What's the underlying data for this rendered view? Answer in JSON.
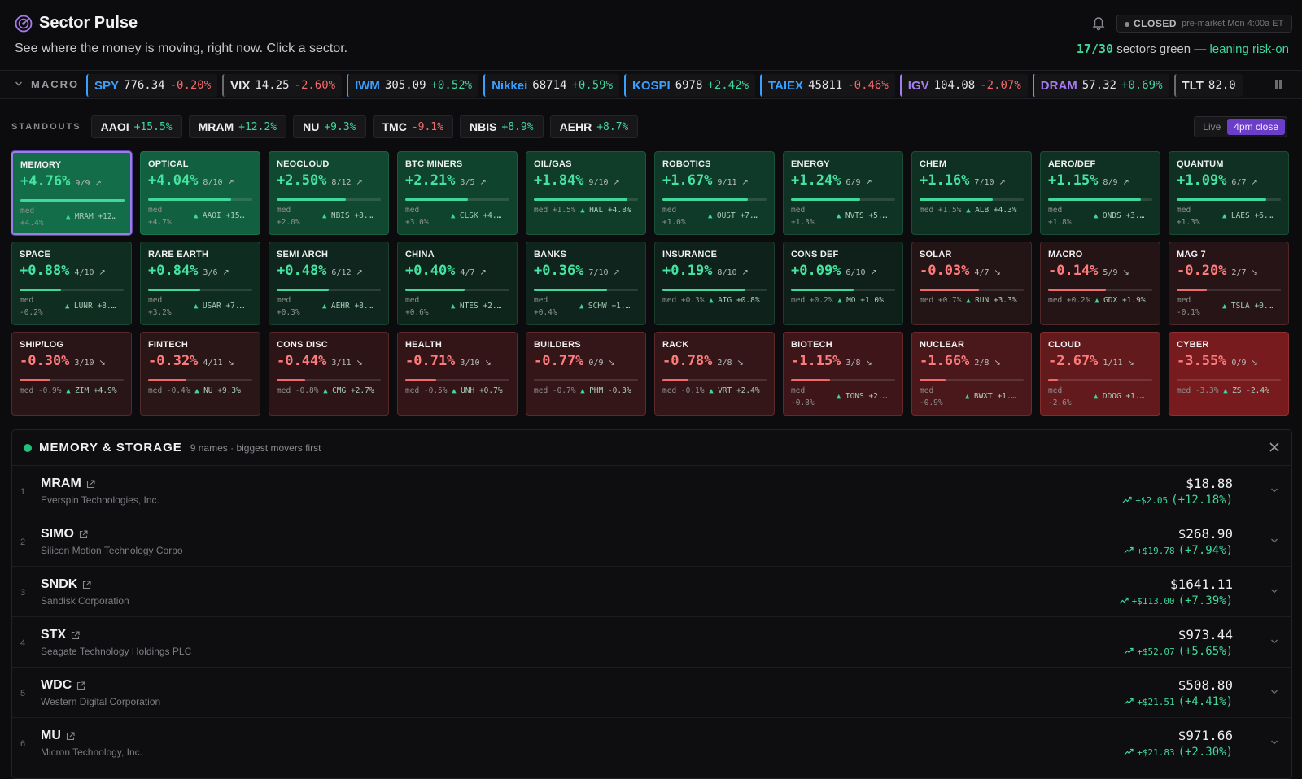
{
  "header": {
    "title": "Sector Pulse",
    "subtitle": "See where the money is moving, right now. Click a sector.",
    "status_label": "CLOSED",
    "status_time": "pre-market Mon 4:00a ET",
    "summary_count": "17/30",
    "summary_text": "sectors green —",
    "summary_lean": "leaning risk-on"
  },
  "macro": {
    "label": "MACRO",
    "items": [
      {
        "sym": "SPY",
        "price": "776.34",
        "chg": "-0.20%",
        "up": false,
        "color": "#3aa0ff"
      },
      {
        "sym": "VIX",
        "price": "14.25",
        "chg": "-2.60%",
        "up": false,
        "color": "#e6e6e8"
      },
      {
        "sym": "IWM",
        "price": "305.09",
        "chg": "+0.52%",
        "up": true,
        "color": "#3aa0ff"
      },
      {
        "sym": "Nikkei",
        "price": "68714",
        "chg": "+0.59%",
        "up": true,
        "color": "#3aa0ff"
      },
      {
        "sym": "KOSPI",
        "price": "6978",
        "chg": "+2.42%",
        "up": true,
        "color": "#3aa0ff"
      },
      {
        "sym": "TAIEX",
        "price": "45811",
        "chg": "-0.46%",
        "up": false,
        "color": "#3aa0ff"
      },
      {
        "sym": "IGV",
        "price": "104.08",
        "chg": "-2.07%",
        "up": false,
        "color": "#a57cf0"
      },
      {
        "sym": "DRAM",
        "price": "57.32",
        "chg": "+0.69%",
        "up": true,
        "color": "#a57cf0"
      },
      {
        "sym": "TLT",
        "price": "82.0",
        "chg": "",
        "up": true,
        "color": "#e6e6e8"
      }
    ]
  },
  "standouts": {
    "label": "STANDOUTS",
    "items": [
      {
        "sym": "AAOI",
        "chg": "+15.5%",
        "up": true
      },
      {
        "sym": "MRAM",
        "chg": "+12.2%",
        "up": true
      },
      {
        "sym": "NU",
        "chg": "+9.3%",
        "up": true
      },
      {
        "sym": "TMC",
        "chg": "-9.1%",
        "up": false
      },
      {
        "sym": "NBIS",
        "chg": "+8.9%",
        "up": true
      },
      {
        "sym": "AEHR",
        "chg": "+8.7%",
        "up": true
      }
    ]
  },
  "toggle": {
    "live": "Live",
    "close": "4pm close"
  },
  "colors": {
    "green": "#3fd79a",
    "red": "#f06a6a",
    "accent": "#6b3ec9"
  },
  "sectors": [
    {
      "name": "MEMORY",
      "pct": "+4.76%",
      "breadth": "9/9",
      "ratio": 1.0,
      "med": "+4.4%",
      "lead": "MRAM +12…",
      "wrap": true,
      "v": 4.76,
      "selected": true
    },
    {
      "name": "OPTICAL",
      "pct": "+4.04%",
      "breadth": "8/10",
      "ratio": 0.8,
      "med": "+4.7%",
      "lead": "AAOI +15…",
      "wrap": true,
      "v": 4.04
    },
    {
      "name": "NEOCLOUD",
      "pct": "+2.50%",
      "breadth": "8/12",
      "ratio": 0.667,
      "med": "+2.0%",
      "lead": "NBIS +8.…",
      "wrap": true,
      "v": 2.5
    },
    {
      "name": "BTC MINERS",
      "pct": "+2.21%",
      "breadth": "3/5",
      "ratio": 0.6,
      "med": "+3.0%",
      "lead": "CLSK +4.…",
      "wrap": true,
      "v": 2.21
    },
    {
      "name": "OIL/GAS",
      "pct": "+1.84%",
      "breadth": "9/10",
      "ratio": 0.9,
      "med": "+1.5%",
      "lead": "HAL +4.8%",
      "wrap": false,
      "v": 1.84
    },
    {
      "name": "ROBOTICS",
      "pct": "+1.67%",
      "breadth": "9/11",
      "ratio": 0.818,
      "med": "+1.0%",
      "lead": "OUST +7.…",
      "wrap": true,
      "v": 1.67
    },
    {
      "name": "ENERGY",
      "pct": "+1.24%",
      "breadth": "6/9",
      "ratio": 0.667,
      "med": "+1.3%",
      "lead": "NVTS +5.…",
      "wrap": true,
      "v": 1.24
    },
    {
      "name": "CHEM",
      "pct": "+1.16%",
      "breadth": "7/10",
      "ratio": 0.7,
      "med": "+1.5%",
      "lead": "ALB +4.3%",
      "wrap": false,
      "v": 1.16
    },
    {
      "name": "AERO/DEF",
      "pct": "+1.15%",
      "breadth": "8/9",
      "ratio": 0.889,
      "med": "+1.8%",
      "lead": "ONDS +3.…",
      "wrap": true,
      "v": 1.15
    },
    {
      "name": "QUANTUM",
      "pct": "+1.09%",
      "breadth": "6/7",
      "ratio": 0.857,
      "med": "+1.3%",
      "lead": "LAES +6.…",
      "wrap": true,
      "v": 1.09
    },
    {
      "name": "SPACE",
      "pct": "+0.88%",
      "breadth": "4/10",
      "ratio": 0.4,
      "med": "-0.2%",
      "lead": "LUNR +8.…",
      "wrap": true,
      "v": 0.88
    },
    {
      "name": "RARE EARTH",
      "pct": "+0.84%",
      "breadth": "3/6",
      "ratio": 0.5,
      "med": "+3.2%",
      "lead": "USAR +7.…",
      "wrap": true,
      "v": 0.84
    },
    {
      "name": "SEMI ARCH",
      "pct": "+0.48%",
      "breadth": "6/12",
      "ratio": 0.5,
      "med": "+0.3%",
      "lead": "AEHR +8.…",
      "wrap": true,
      "v": 0.48
    },
    {
      "name": "CHINA",
      "pct": "+0.40%",
      "breadth": "4/7",
      "ratio": 0.571,
      "med": "+0.6%",
      "lead": "NTES +2.…",
      "wrap": true,
      "v": 0.4
    },
    {
      "name": "BANKS",
      "pct": "+0.36%",
      "breadth": "7/10",
      "ratio": 0.7,
      "med": "+0.4%",
      "lead": "SCHW +1.…",
      "wrap": true,
      "v": 0.36
    },
    {
      "name": "INSURANCE",
      "pct": "+0.19%",
      "breadth": "8/10",
      "ratio": 0.8,
      "med": "+0.3%",
      "lead": "AIG +0.8%",
      "wrap": false,
      "v": 0.19
    },
    {
      "name": "CONS DEF",
      "pct": "+0.09%",
      "breadth": "6/10",
      "ratio": 0.6,
      "med": "+0.2%",
      "lead": "MO +1.0%",
      "wrap": false,
      "v": 0.09
    },
    {
      "name": "SOLAR",
      "pct": "-0.03%",
      "breadth": "4/7",
      "ratio": 0.571,
      "med": "+0.7%",
      "lead": "RUN +3.3%",
      "wrap": false,
      "v": -0.03
    },
    {
      "name": "MACRO",
      "pct": "-0.14%",
      "breadth": "5/9",
      "ratio": 0.556,
      "med": "+0.2%",
      "lead": "GDX +1.9%",
      "wrap": false,
      "v": -0.14
    },
    {
      "name": "MAG 7",
      "pct": "-0.20%",
      "breadth": "2/7",
      "ratio": 0.286,
      "med": "-0.1%",
      "lead": "TSLA +0.…",
      "wrap": true,
      "v": -0.2
    },
    {
      "name": "SHIP/LOG",
      "pct": "-0.30%",
      "breadth": "3/10",
      "ratio": 0.3,
      "med": "-0.9%",
      "lead": "ZIM +4.9%",
      "wrap": false,
      "v": -0.3
    },
    {
      "name": "FINTECH",
      "pct": "-0.32%",
      "breadth": "4/11",
      "ratio": 0.364,
      "med": "-0.4%",
      "lead": "NU +9.3%",
      "wrap": false,
      "v": -0.32
    },
    {
      "name": "CONS DISC",
      "pct": "-0.44%",
      "breadth": "3/11",
      "ratio": 0.273,
      "med": "-0.8%",
      "lead": "CMG +2.7%",
      "wrap": false,
      "v": -0.44
    },
    {
      "name": "HEALTH",
      "pct": "-0.71%",
      "breadth": "3/10",
      "ratio": 0.3,
      "med": "-0.5%",
      "lead": "UNH +0.7%",
      "wrap": false,
      "v": -0.71
    },
    {
      "name": "BUILDERS",
      "pct": "-0.77%",
      "breadth": "0/9",
      "ratio": 0.0,
      "med": "-0.7%",
      "lead": "PHM -0.3%",
      "wrap": false,
      "v": -0.77
    },
    {
      "name": "RACK",
      "pct": "-0.78%",
      "breadth": "2/8",
      "ratio": 0.25,
      "med": "-0.1%",
      "lead": "VRT +2.4%",
      "wrap": false,
      "v": -0.78
    },
    {
      "name": "BIOTECH",
      "pct": "-1.15%",
      "breadth": "3/8",
      "ratio": 0.375,
      "med": "-0.8%",
      "lead": "IONS +2.…",
      "wrap": true,
      "v": -1.15
    },
    {
      "name": "NUCLEAR",
      "pct": "-1.66%",
      "breadth": "2/8",
      "ratio": 0.25,
      "med": "-0.9%",
      "lead": "BWXT +1.…",
      "wrap": true,
      "v": -1.66
    },
    {
      "name": "CLOUD",
      "pct": "-2.67%",
      "breadth": "1/11",
      "ratio": 0.091,
      "med": "-2.6%",
      "lead": "DDOG +1.…",
      "wrap": true,
      "v": -2.67
    },
    {
      "name": "CYBER",
      "pct": "-3.55%",
      "breadth": "0/9",
      "ratio": 0.0,
      "med": "-3.3%",
      "lead": "ZS -2.4%",
      "wrap": false,
      "v": -3.55
    }
  ],
  "detail": {
    "title": "MEMORY & STORAGE",
    "meta": "9 names · biggest movers first",
    "rows": [
      {
        "rank": "1",
        "sym": "MRAM",
        "name": "Everspin Technologies, Inc.",
        "price": "$18.88",
        "delta": "+$2.05",
        "pct": "(+12.18%)"
      },
      {
        "rank": "2",
        "sym": "SIMO",
        "name": "Silicon Motion Technology Corpo",
        "price": "$268.90",
        "delta": "+$19.78",
        "pct": "(+7.94%)"
      },
      {
        "rank": "3",
        "sym": "SNDK",
        "name": "Sandisk Corporation",
        "price": "$1641.11",
        "delta": "+$113.00",
        "pct": "(+7.39%)"
      },
      {
        "rank": "4",
        "sym": "STX",
        "name": "Seagate Technology Holdings PLC",
        "price": "$973.44",
        "delta": "+$52.07",
        "pct": "(+5.65%)"
      },
      {
        "rank": "5",
        "sym": "WDC",
        "name": "Western Digital Corporation",
        "price": "$508.80",
        "delta": "+$21.51",
        "pct": "(+4.41%)"
      },
      {
        "rank": "6",
        "sym": "MU",
        "name": "Micron Technology, Inc.",
        "price": "$971.66",
        "delta": "+$21.83",
        "pct": "(+2.30%)"
      }
    ]
  }
}
